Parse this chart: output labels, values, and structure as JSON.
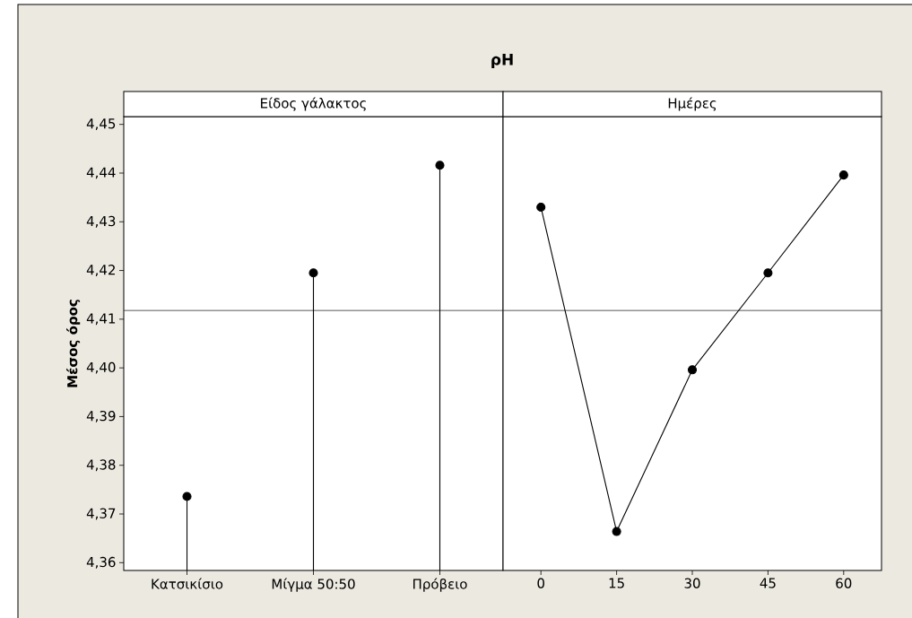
{
  "chart_data": [
    {
      "type": "lollipop",
      "title": "ρH",
      "subtitle": "Είδος γάλακτος",
      "ylabel": "Μέσος όρος",
      "categories": [
        "Κατσικίσιο",
        "Μίγμα 50:50",
        "Πρόβειο"
      ],
      "series": [
        {
          "color": "#000000",
          "values": [
            4.3736,
            4.4195,
            4.4416
          ]
        }
      ],
      "ylim": [
        4.3584,
        4.4516
      ],
      "yticks": [
        {
          "value": 4.36,
          "label": "4,36"
        },
        {
          "value": 4.37,
          "label": "4,37"
        },
        {
          "value": 4.38,
          "label": "4,38"
        },
        {
          "value": 4.39,
          "label": "4,39"
        },
        {
          "value": 4.4,
          "label": "4,40"
        },
        {
          "value": 4.41,
          "label": "4,41"
        },
        {
          "value": 4.42,
          "label": "4,42"
        },
        {
          "value": 4.43,
          "label": "4,43"
        },
        {
          "value": 4.44,
          "label": "4,44"
        },
        {
          "value": 4.45,
          "label": "4,45"
        }
      ],
      "ref_lines": [
        {
          "axis": "y",
          "value": 4.4118,
          "color": "#303030"
        }
      ],
      "marker": "circle"
    },
    {
      "type": "line",
      "subtitle": "Ημέρες",
      "categories": [
        "0",
        "15",
        "30",
        "45",
        "60"
      ],
      "series": [
        {
          "color": "#000000",
          "values": [
            4.433,
            4.3664,
            4.3996,
            4.4195,
            4.4396
          ]
        }
      ],
      "ylim": [
        4.3584,
        4.4516
      ],
      "tick_labels": "x",
      "ref_lines": [
        {
          "axis": "y",
          "value": 4.4118,
          "color": "#303030"
        }
      ],
      "marker": "circle",
      "line_style": "solid"
    }
  ]
}
